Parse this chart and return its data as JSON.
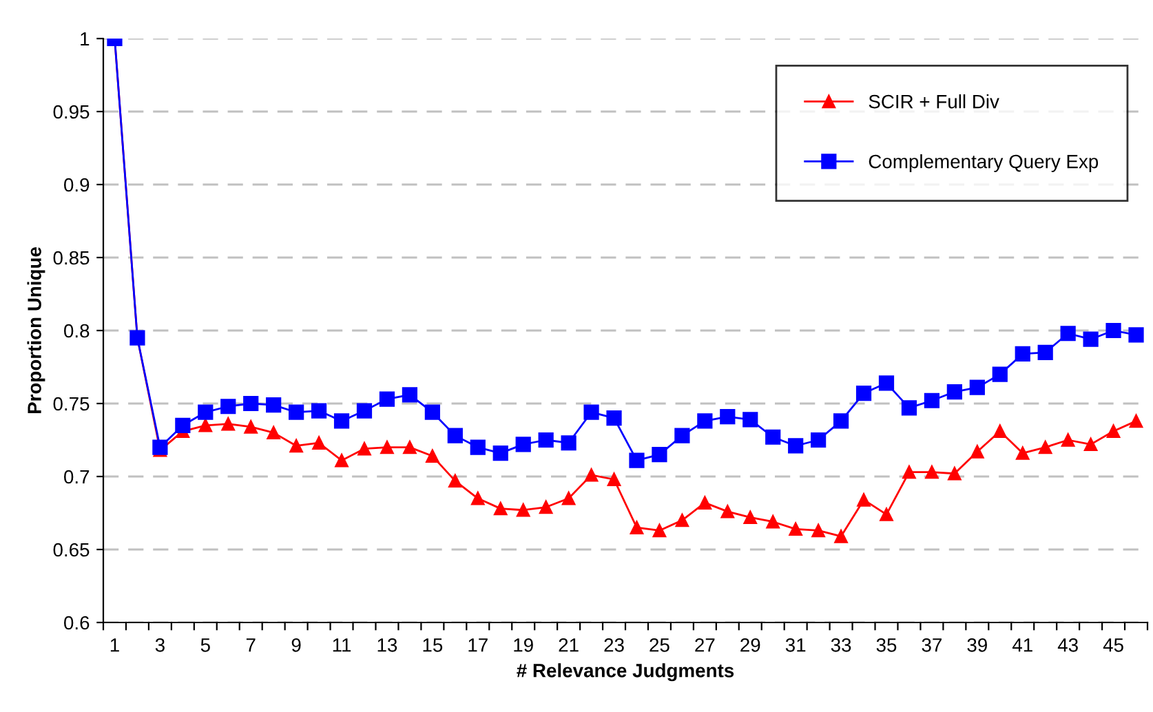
{
  "chart_data": {
    "type": "line",
    "xlabel": "# Relevance Judgments",
    "ylabel": "Proportion Unique",
    "categories": [
      "1",
      null,
      "3",
      null,
      "5",
      null,
      "7",
      null,
      "9",
      null,
      "11",
      null,
      "13",
      null,
      "15",
      null,
      "17",
      null,
      "19",
      null,
      "21",
      null,
      "23",
      null,
      "25",
      null,
      "27",
      null,
      "29",
      null,
      "31",
      null,
      "33",
      null,
      "35",
      null,
      "37",
      null,
      "39",
      null,
      "41",
      null,
      "43",
      null,
      "45",
      null
    ],
    "ylim": [
      0.6,
      1
    ],
    "yticks": [
      0.6,
      0.65,
      0.7,
      0.75,
      0.8,
      0.85,
      0.9,
      0.95,
      1
    ],
    "grid": "y",
    "legend": "top right",
    "line_style": "solid",
    "series": [
      {
        "name": "SCIR + Full Div",
        "color": "#ff0000",
        "marker": "triangle",
        "values": [
          1.0,
          0.795,
          0.718,
          0.731,
          0.735,
          0.736,
          0.734,
          0.73,
          0.721,
          0.723,
          0.711,
          0.719,
          0.72,
          0.72,
          0.714,
          0.697,
          0.685,
          0.678,
          0.677,
          0.679,
          0.685,
          0.701,
          0.698,
          0.665,
          0.663,
          0.67,
          0.682,
          0.676,
          0.672,
          0.669,
          0.664,
          0.663,
          0.659,
          0.684,
          0.674,
          0.703,
          0.703,
          0.702,
          0.717,
          0.731,
          0.716,
          0.72,
          0.725,
          0.722,
          0.731,
          0.738
        ]
      },
      {
        "name": "Complementary Query Exp",
        "color": "#0000ff",
        "marker": "square",
        "values": [
          1.0,
          0.795,
          0.72,
          0.735,
          0.744,
          0.748,
          0.75,
          0.749,
          0.744,
          0.745,
          0.738,
          0.745,
          0.753,
          0.756,
          0.744,
          0.728,
          0.72,
          0.716,
          0.722,
          0.725,
          0.723,
          0.744,
          0.74,
          0.711,
          0.715,
          0.728,
          0.738,
          0.741,
          0.739,
          0.727,
          0.721,
          0.725,
          0.738,
          0.757,
          0.764,
          0.747,
          0.752,
          0.758,
          0.761,
          0.77,
          0.784,
          0.785,
          0.798,
          0.794,
          0.8,
          0.797
        ]
      }
    ]
  }
}
